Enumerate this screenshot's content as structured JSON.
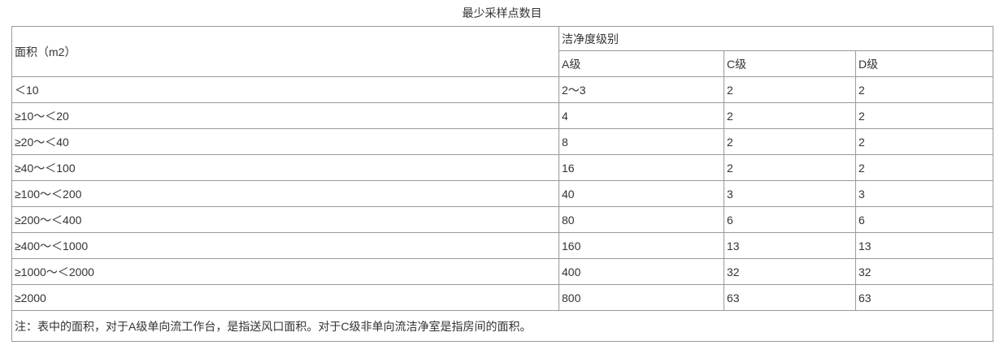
{
  "title": "最少采样点数目",
  "colors": {
    "background": "#ffffff",
    "border": "#999999",
    "text": "#333333"
  },
  "table": {
    "header": {
      "area_label": "面积（m2）",
      "cleanliness_label": "洁净度级别",
      "class_labels": [
        "A级",
        "C级",
        "D级"
      ]
    },
    "rows": [
      {
        "area": "＜10",
        "a": "2～3",
        "c": "2",
        "d": "2"
      },
      {
        "area": "≥10～＜20",
        "a": "4",
        "c": "2",
        "d": "2"
      },
      {
        "area": "≥20～＜40",
        "a": "8",
        "c": "2",
        "d": "2"
      },
      {
        "area": "≥40～＜100",
        "a": "16",
        "c": "2",
        "d": "2"
      },
      {
        "area": "≥100～＜200",
        "a": "40",
        "c": "3",
        "d": "3"
      },
      {
        "area": "≥200～＜400",
        "a": "80",
        "c": "6",
        "d": "6"
      },
      {
        "area": "≥400～＜1000",
        "a": "160",
        "c": "13",
        "d": "13"
      },
      {
        "area": "≥1000～＜2000",
        "a": "400",
        "c": "32",
        "d": "32"
      },
      {
        "area": "≥2000",
        "a": "800",
        "c": "63",
        "d": "63"
      }
    ],
    "note": "注：表中的面积，对于A级单向流工作台，是指送风口面积。对于C级非单向流洁净室是指房间的面积。"
  }
}
